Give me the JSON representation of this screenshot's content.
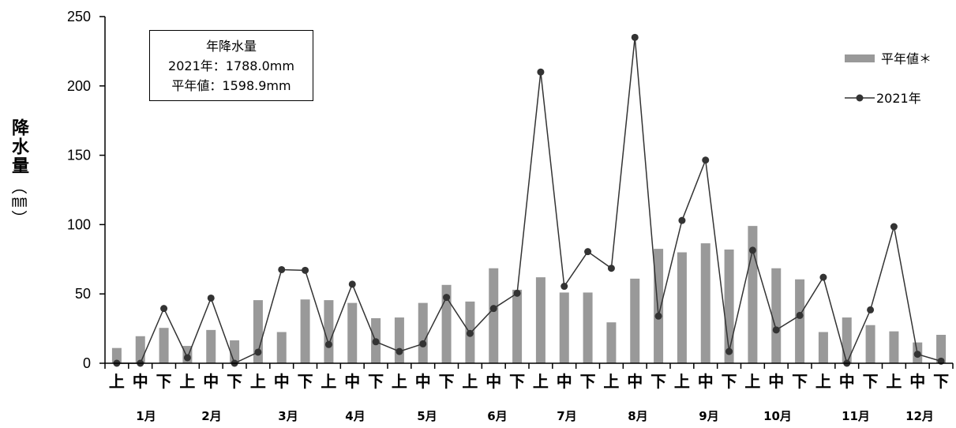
{
  "chart_data": {
    "type": "bar+line",
    "ylabel": "降水量",
    "ylabel_unit": "（㎜）",
    "ylim": [
      0,
      250
    ],
    "yticks": [
      "0",
      "50",
      "100",
      "150",
      "200",
      "250"
    ],
    "categories": [
      "上",
      "中",
      "下",
      "上",
      "中",
      "下",
      "上",
      "中",
      "下",
      "上",
      "中",
      "下",
      "上",
      "中",
      "下",
      "上",
      "中",
      "下",
      "上",
      "中",
      "下",
      "上",
      "中",
      "下",
      "上",
      "中",
      "下",
      "上",
      "中",
      "下",
      "上",
      "中",
      "下",
      "上",
      "中",
      "下"
    ],
    "month_labels": [
      "1月",
      "2月",
      "3月",
      "4月",
      "5月",
      "6月",
      "7月",
      "8月",
      "9月",
      "10月",
      "11月",
      "12月"
    ],
    "series": [
      {
        "name": "平年値＊",
        "kind": "bar",
        "color": "#999999",
        "values": [
          11,
          19.5,
          25.5,
          12.5,
          24,
          16.5,
          45.5,
          22.5,
          46,
          45.5,
          43.5,
          32.5,
          33,
          43.5,
          56.5,
          44.5,
          68.5,
          53,
          62,
          51,
          51,
          29.5,
          61,
          82.5,
          80,
          86.5,
          82,
          99,
          68.5,
          60.5,
          22.5,
          33,
          27.5,
          23,
          15,
          20.5
        ]
      },
      {
        "name": "2021年",
        "kind": "line",
        "color": "#333333",
        "values": [
          0,
          0,
          39.5,
          4,
          47,
          0,
          8,
          67.5,
          67,
          13.5,
          57,
          15.5,
          8.5,
          14,
          47.5,
          21.5,
          39.5,
          50.5,
          210,
          55.5,
          80.5,
          68.5,
          235,
          34,
          103,
          146.5,
          8.5,
          81.5,
          24,
          34.5,
          62,
          0,
          38.5,
          98.5,
          6.5,
          1.5
        ]
      }
    ]
  },
  "infobox": {
    "title": "年降水量",
    "line1": "2021年：1788.0mm",
    "line2": "平年値：1598.9mm"
  },
  "legend": {
    "bar_label": "平年値＊",
    "line_label": "2021年"
  }
}
